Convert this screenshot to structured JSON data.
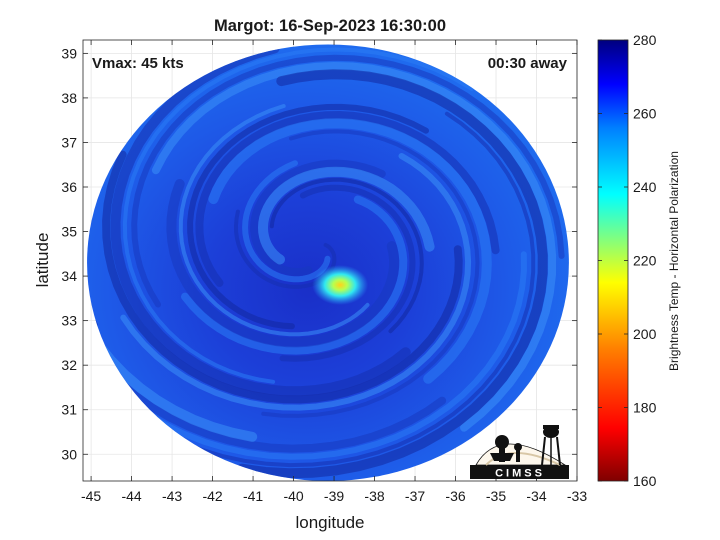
{
  "chart_data": {
    "type": "heatmap",
    "title": "Margot: 16-Sep-2023 16:30:00",
    "xlabel": "longitude",
    "ylabel": "latitude",
    "xlim": [
      -45.2,
      -33.0
    ],
    "ylim": [
      29.4,
      39.3
    ],
    "xticks": [
      -45,
      -44,
      -43,
      -42,
      -41,
      -40,
      -39,
      -38,
      -37,
      -36,
      -35,
      -34,
      -33
    ],
    "yticks": [
      30,
      31,
      32,
      33,
      34,
      35,
      36,
      37,
      38,
      39
    ],
    "grid": true,
    "annotations": {
      "vmax": "Vmax: 45 kts",
      "time_offset": "00:30 away"
    },
    "swath": {
      "center_lon": -39.15,
      "center_lat": 34.3,
      "radius_lon": 5.95,
      "radius_lat": 4.9
    },
    "storm_center": {
      "lon": -38.85,
      "lat": 33.8
    },
    "colorbar": {
      "label": "Brightness Temp - Horizontal Polarization",
      "min": 160,
      "max": 280,
      "ticks": [
        160,
        180,
        200,
        220,
        240,
        260,
        280
      ]
    },
    "logo": "CIMSS"
  }
}
